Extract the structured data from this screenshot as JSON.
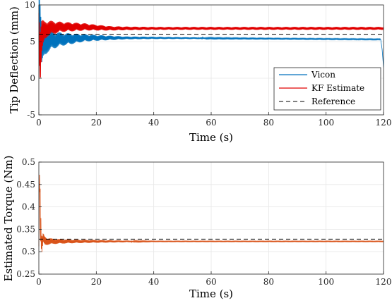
{
  "chart_data": [
    {
      "type": "line",
      "xlabel": "Time (s)",
      "ylabel": "Tip Deflection (mm)",
      "xlim": [
        0,
        120
      ],
      "ylim": [
        -5,
        10
      ],
      "xticks": [
        0,
        20,
        40,
        60,
        80,
        100,
        120
      ],
      "yticks": [
        -5,
        0,
        5,
        10
      ],
      "grid": true,
      "legend": "bottom-right",
      "series": [
        {
          "name": "Vicon",
          "color": "#0072BD",
          "style": "solid",
          "x": [
            0,
            0.5,
            1,
            2,
            3,
            5,
            8,
            12,
            16,
            20,
            25,
            30,
            40,
            60,
            80,
            100,
            119,
            119.5,
            120
          ],
          "y": [
            9.5,
            7.0,
            4.0,
            4.8,
            5.0,
            5.2,
            5.3,
            5.4,
            5.5,
            5.5,
            5.5,
            5.5,
            5.5,
            5.45,
            5.4,
            5.35,
            5.3,
            4.0,
            1.5
          ],
          "osc_amp": [
            4.5,
            3.5,
            2.5,
            1.8,
            1.5,
            1.2,
            0.9,
            0.7,
            0.5,
            0.4,
            0.3,
            0.2,
            0.15,
            0.1,
            0.08,
            0.08,
            0.08,
            0,
            0
          ]
        },
        {
          "name": "KF Estimate",
          "color": "#E00000",
          "style": "solid",
          "x": [
            0,
            0.5,
            1,
            2,
            3,
            5,
            8,
            12,
            16,
            20,
            25,
            30,
            40,
            60,
            80,
            100,
            120
          ],
          "y": [
            6.5,
            3.0,
            5.5,
            6.5,
            6.8,
            6.9,
            7.0,
            7.0,
            7.0,
            6.9,
            6.8,
            6.8,
            6.8,
            6.8,
            6.8,
            6.8,
            6.8
          ],
          "osc_amp": [
            4.0,
            4.0,
            2.5,
            1.3,
            1.1,
            0.9,
            0.7,
            0.6,
            0.5,
            0.4,
            0.3,
            0.25,
            0.2,
            0.2,
            0.2,
            0.2,
            0.2
          ]
        },
        {
          "name": "Reference",
          "color": "#000000",
          "style": "dashed",
          "x": [
            0,
            120
          ],
          "y": [
            6.0,
            6.0
          ]
        }
      ]
    },
    {
      "type": "line",
      "xlabel": "Time (s)",
      "ylabel": "Estimated Torque (Nm)",
      "xlim": [
        0,
        120
      ],
      "ylim": [
        0.25,
        0.5
      ],
      "xticks": [
        0,
        20,
        40,
        60,
        80,
        100,
        120
      ],
      "yticks": [
        0.25,
        0.3,
        0.35,
        0.4,
        0.45,
        0.5
      ],
      "grid": true,
      "series": [
        {
          "color": "#D95319",
          "style": "solid",
          "x": [
            0,
            0.3,
            0.6,
            1,
            1.5,
            2,
            3,
            5,
            8,
            12,
            20,
            30,
            40,
            60,
            80,
            100,
            120
          ],
          "y": [
            0.3,
            0.49,
            0.36,
            0.31,
            0.33,
            0.325,
            0.323,
            0.323,
            0.323,
            0.323,
            0.323,
            0.323,
            0.323,
            0.323,
            0.323,
            0.323,
            0.323
          ],
          "osc_amp": [
            0.02,
            0.03,
            0.04,
            0.02,
            0.012,
            0.01,
            0.008,
            0.006,
            0.005,
            0.004,
            0.003,
            0.002,
            0.001,
            0.001,
            0.001,
            0.001,
            0.001
          ]
        },
        {
          "color": "#000000",
          "style": "dashed",
          "x": [
            0,
            120
          ],
          "y": [
            0.328,
            0.328
          ]
        }
      ]
    }
  ]
}
